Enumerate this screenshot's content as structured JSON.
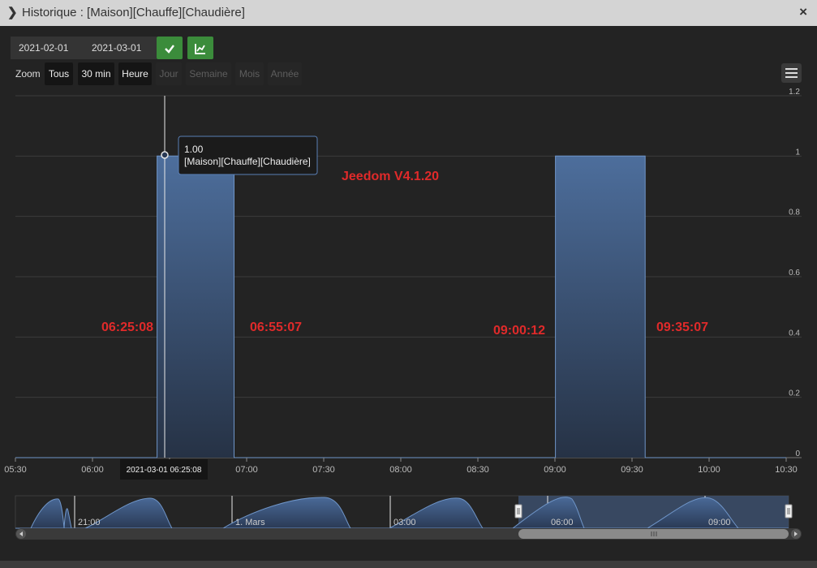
{
  "window": {
    "title": "Historique : [Maison][Chauffe][Chaudière]",
    "close_label": "×"
  },
  "toolbar": {
    "start_date": "2021-02-01",
    "end_date": "2021-03-01",
    "validate_icon": "check-icon",
    "chart_type_icon": "area-chart-icon"
  },
  "zoom": {
    "label": "Zoom",
    "buttons": [
      {
        "label": "Tous",
        "enabled": true
      },
      {
        "label": "30 min",
        "enabled": true
      },
      {
        "label": "Heure",
        "enabled": true
      },
      {
        "label": "Jour",
        "enabled": false
      },
      {
        "label": "Semaine",
        "enabled": false
      },
      {
        "label": "Mois",
        "enabled": false
      },
      {
        "label": "Année",
        "enabled": false
      }
    ]
  },
  "tooltip": {
    "value": "1.00",
    "series": "[Maison][Chauffe][Chaudière]",
    "date_label": "2021-03-01 06:25:08"
  },
  "annotations": {
    "version": "Jeedom V4.1.20",
    "t1": "06:25:08",
    "t2": "06:55:07",
    "t3": "09:00:12",
    "t4": "09:35:07"
  },
  "navigator": {
    "labels": [
      "21:00",
      "1. Mars",
      "03:00",
      "06:00",
      "09:00"
    ]
  },
  "chart_data": {
    "type": "area",
    "x_unit": "time (2021-03-01)",
    "x_range": [
      "05:30",
      "10:30"
    ],
    "x_ticks": [
      "05:30",
      "06:00",
      "06:30",
      "07:00",
      "07:30",
      "08:00",
      "08:30",
      "09:00",
      "09:30",
      "10:00",
      "10:30"
    ],
    "ylim": [
      0,
      1.2
    ],
    "y_ticks": [
      "0",
      "0.2",
      "0.4",
      "0.6",
      "0.8",
      "1",
      "1.2"
    ],
    "grid": true,
    "series": [
      {
        "x": [
          "05:30",
          "06:25:08",
          "06:25:08",
          "06:55:07",
          "06:55:07",
          "09:00:12",
          "09:00:12",
          "09:35:07",
          "09:35:07",
          "10:30"
        ],
        "y": [
          0,
          0,
          1,
          1,
          0,
          0,
          1,
          1,
          0,
          0
        ]
      }
    ],
    "colors": {
      "fill_top": "#4d6e9c",
      "fill_bottom": "#263245",
      "line": "#6f95c8"
    }
  }
}
